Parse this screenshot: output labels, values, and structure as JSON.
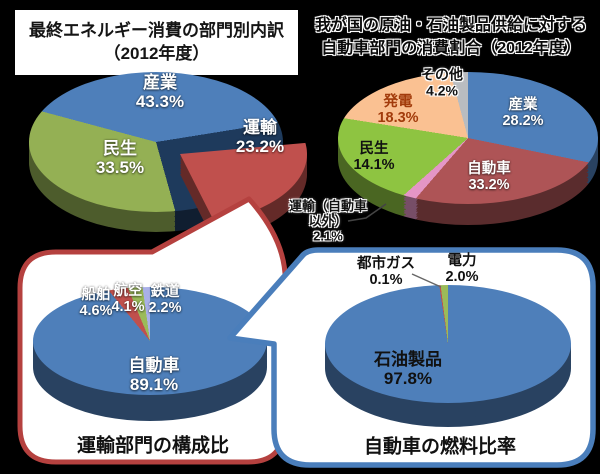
{
  "page": {
    "background": "#000000"
  },
  "titles": {
    "top_left": {
      "line1": "最終エネルギー消費の部門別内訳",
      "line2": "（2012年度）"
    },
    "top_right": {
      "line1": "我が国の原油・石油製品供給に対する",
      "line2": "自動車部門の消費割合（2012年度）"
    }
  },
  "captions": {
    "bottom_left": "運輸部門の構成比",
    "bottom_right": "自動車の燃料比率"
  },
  "colors": {
    "transport_callout_border": "#B5413F",
    "fuel_callout_border": "#4A7EBB",
    "callout_fill": "#FFFFFF"
  },
  "chart_data": [
    {
      "type": "pie",
      "title": "最終エネルギー消費の部門別内訳（2012年度）",
      "rotation_deg": 285,
      "slices": [
        {
          "name": "産業",
          "value": 43.3,
          "pct": "43.3%",
          "color": "#4E7FBA",
          "label_color": "#FFFFFF"
        },
        {
          "name": "運輸",
          "value": 23.2,
          "pct": "23.2%",
          "color": "#C0504D",
          "label_color": "#FFFFFF",
          "exploded": true,
          "gap_color": "#1E3A5C"
        },
        {
          "name": "民生",
          "value": 33.5,
          "pct": "33.5%",
          "color": "#94B054",
          "label_color": "#FFFFFF"
        }
      ]
    },
    {
      "type": "pie",
      "title": "我が国の原油・石油製品供給に対する自動車部門の消費割合（2012年度）",
      "rotation_deg": 0,
      "slices": [
        {
          "name": "産業",
          "value": 28.2,
          "pct": "28.2%",
          "color": "#4E7FBA",
          "label_color": "#FFFFFF"
        },
        {
          "name": "自動車",
          "value": 33.2,
          "pct": "33.2%",
          "color": "#AE5456",
          "label_color": "#FFFFFF"
        },
        {
          "name": "運輸（自動車以外）",
          "value": 2.1,
          "pct": "2.1%",
          "color": "#E496C6",
          "label_color": "#111111"
        },
        {
          "name": "民生",
          "value": 14.1,
          "pct": "14.1%",
          "color": "#8EC441",
          "label_color": "#111111"
        },
        {
          "name": "発電",
          "value": 18.3,
          "pct": "18.3%",
          "color": "#FAC192",
          "label_color": "#A23B0B"
        },
        {
          "name": "その他",
          "value": 4.2,
          "pct": "4.2%",
          "color": "#B9BCC0",
          "label_color": "#111111"
        }
      ]
    },
    {
      "type": "pie",
      "title": "運輸部門の構成比",
      "rotation_deg": 0,
      "slices": [
        {
          "name": "自動車",
          "value": 89.1,
          "pct": "89.1%",
          "color": "#4E7FBA",
          "label_color": "#FFFFFF"
        },
        {
          "name": "船舶",
          "value": 4.6,
          "pct": "4.6%",
          "color": "#C0504D",
          "label_color": "#FFFFFF"
        },
        {
          "name": "航空",
          "value": 4.1,
          "pct": "4.1%",
          "color": "#9BBB59",
          "label_color": "#FFFFFF"
        },
        {
          "name": "鉄道",
          "value": 2.2,
          "pct": "2.2%",
          "color": "#A9B0E8",
          "label_color": "#FFFFFF"
        }
      ]
    },
    {
      "type": "pie",
      "title": "自動車の燃料比率",
      "rotation_deg": 0,
      "slices": [
        {
          "name": "石油製品",
          "value": 97.8,
          "pct": "97.8%",
          "color": "#4E7FBA",
          "label_color": "#111111"
        },
        {
          "name": "都市ガス",
          "value": 0.1,
          "pct": "0.1%",
          "color": "#C0504D",
          "label_color": "#111111"
        },
        {
          "name": "電力",
          "value": 2.0,
          "pct": "2.0%",
          "color": "#9BBB59",
          "label_color": "#111111"
        }
      ]
    }
  ]
}
